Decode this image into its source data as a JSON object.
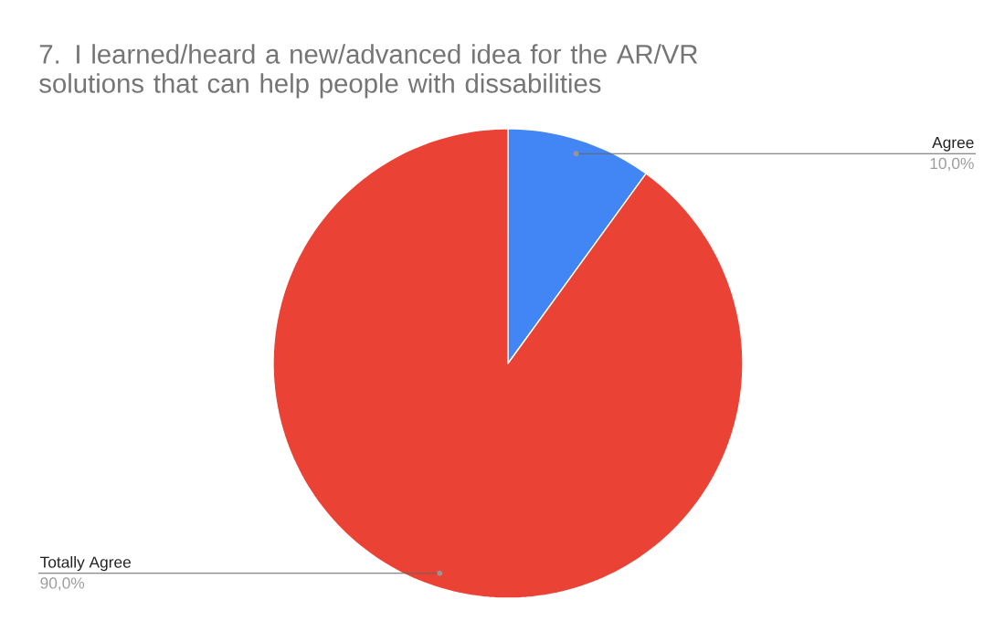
{
  "chart_data": {
    "type": "pie",
    "title": "7. I learned/heard a new/advanced idea for the AR/VR solutions that can help people with dissabilities",
    "categories": [
      "Agree",
      "Totally Agree"
    ],
    "values": [
      10,
      90
    ],
    "colors": [
      "#4285f4",
      "#ea4335"
    ],
    "value_labels": [
      "10,0%",
      "90,0%"
    ]
  }
}
